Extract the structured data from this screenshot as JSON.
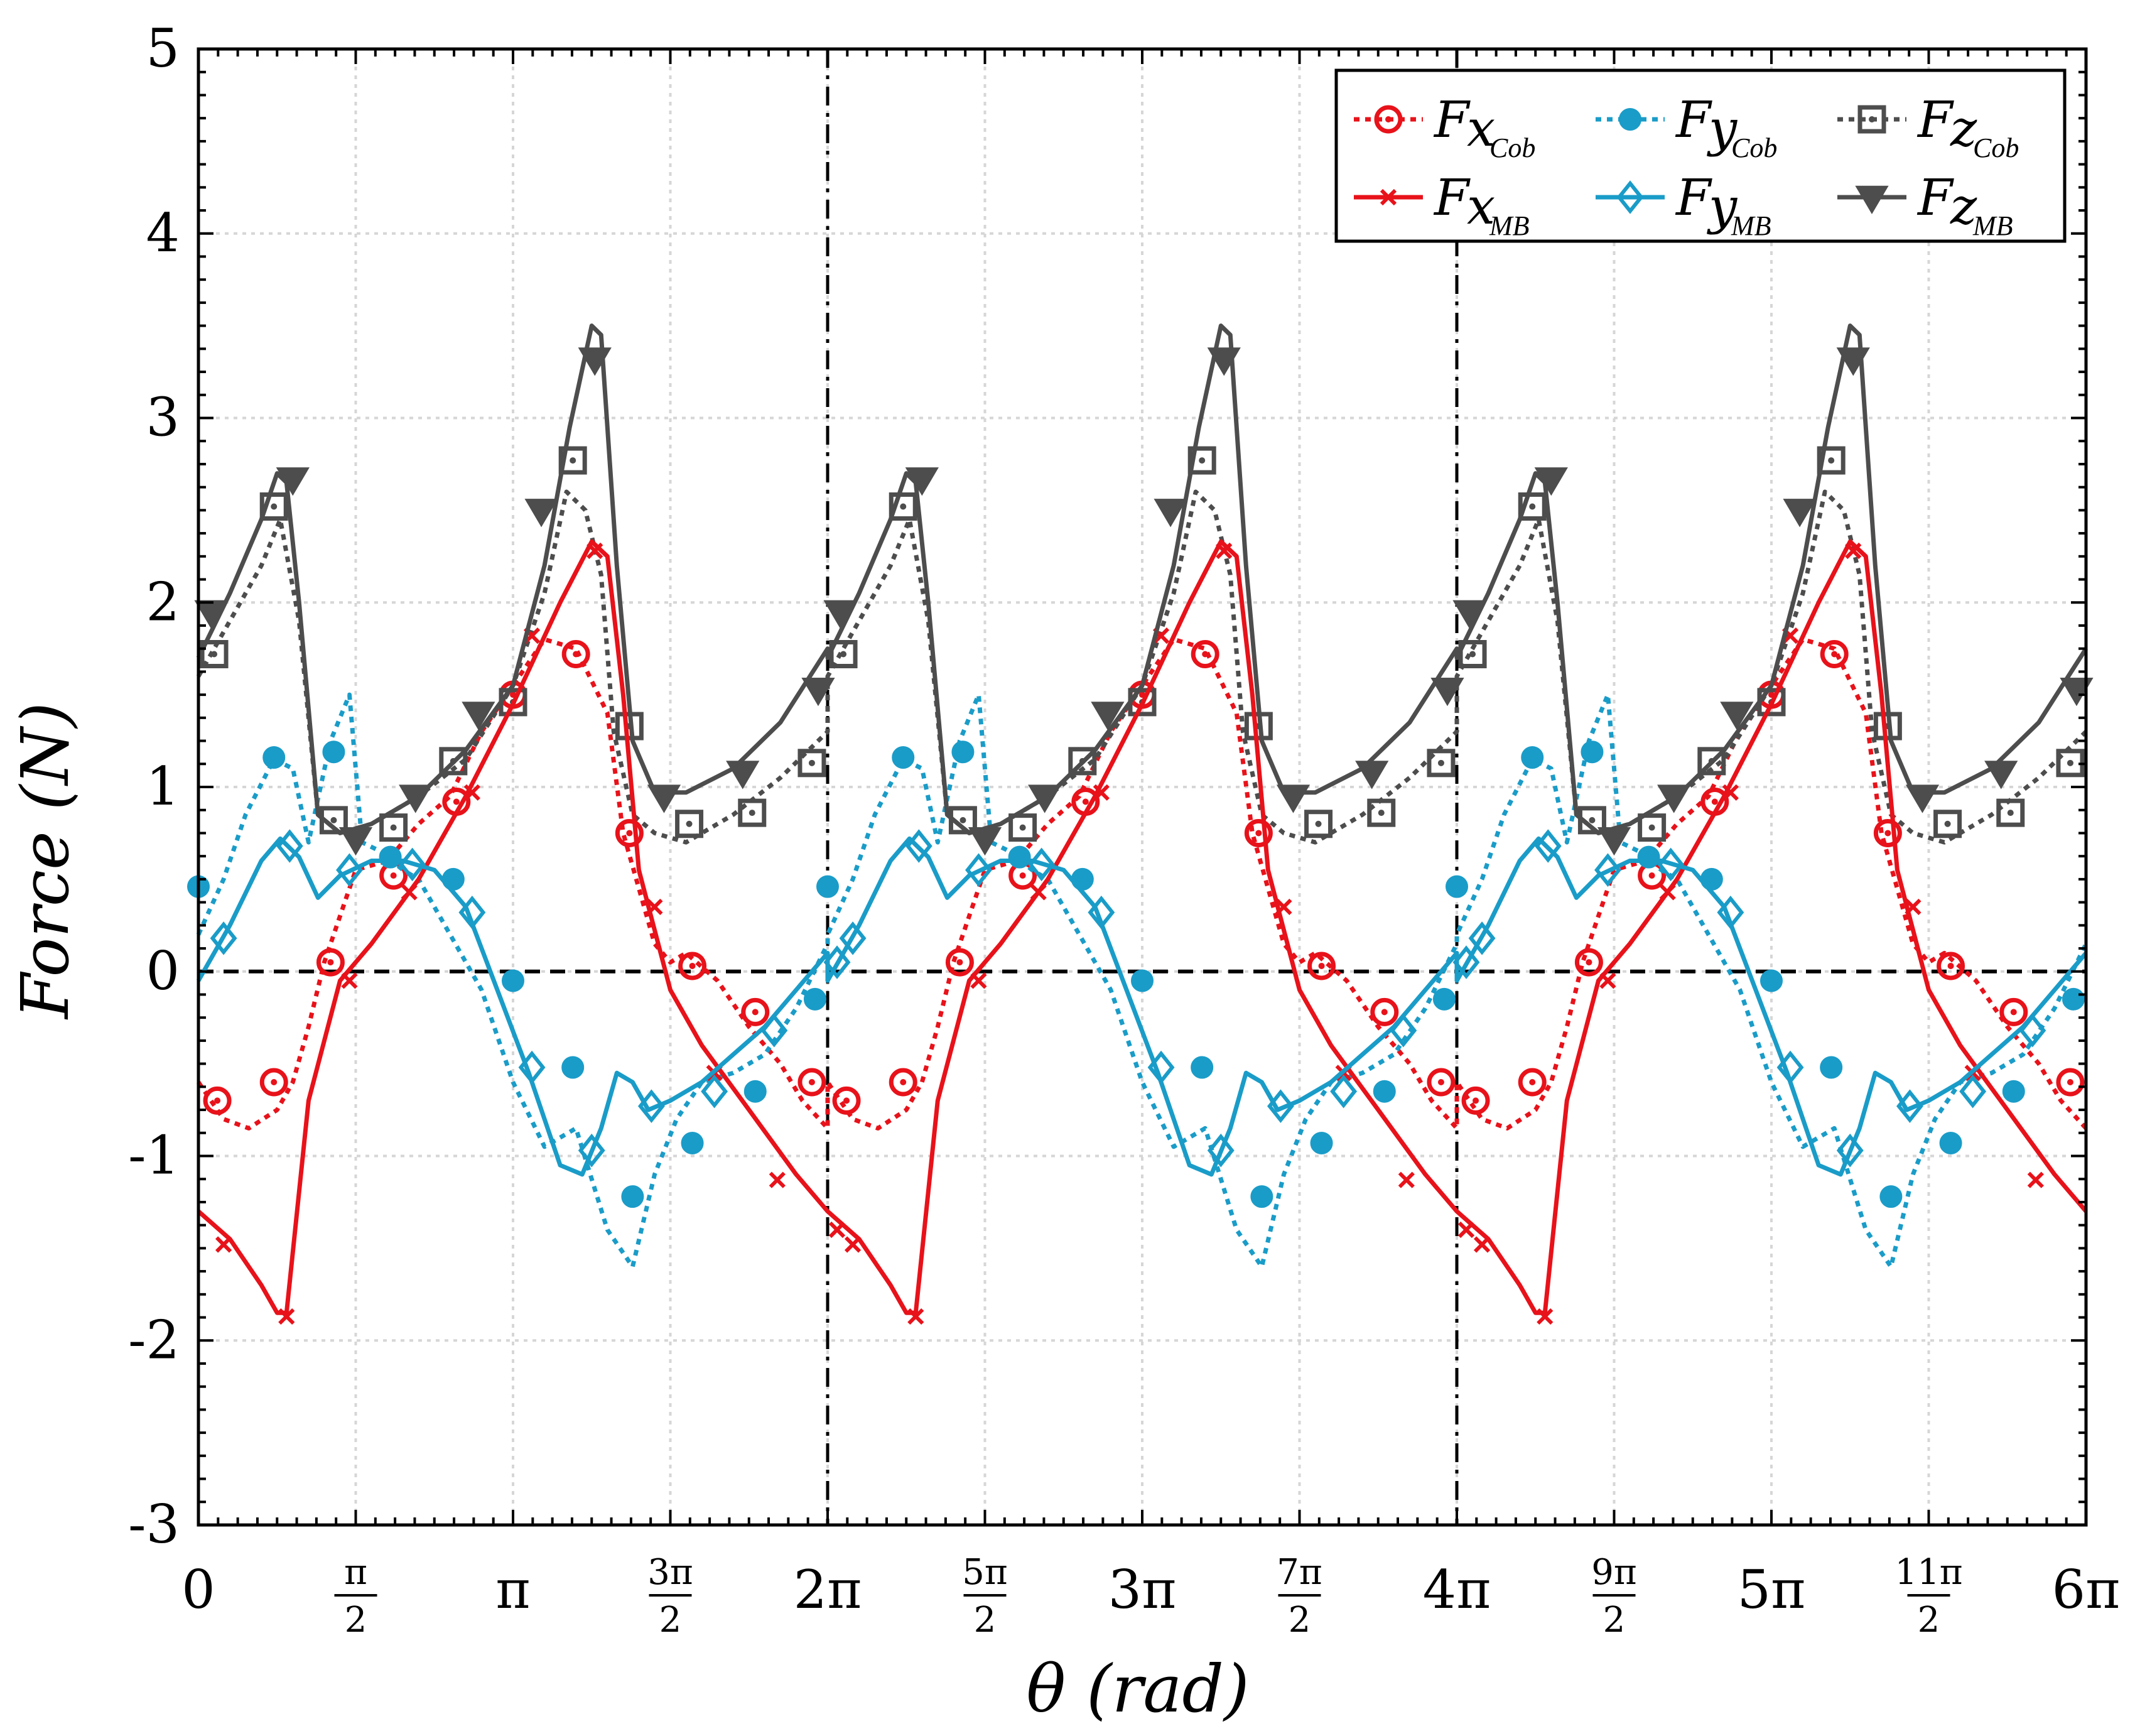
{
  "chart_data": {
    "type": "line",
    "xlabel": "θ (rad)",
    "ylabel": "Force (N)",
    "xlim_pi": [
      0,
      6
    ],
    "ylim": [
      -3,
      5
    ],
    "y_ticks": [
      -3,
      -2,
      -1,
      0,
      1,
      2,
      3,
      4,
      5
    ],
    "y_tick_labels": [
      "-3",
      "-2",
      "-1",
      "0",
      "1",
      "2",
      "3",
      "4",
      "5"
    ],
    "x_ticks": [
      {
        "value_pi": 0,
        "label": "0"
      },
      {
        "value_pi": 0.5,
        "num": "π",
        "den": "2"
      },
      {
        "value_pi": 1,
        "label": "π"
      },
      {
        "value_pi": 1.5,
        "num": "3π",
        "den": "2"
      },
      {
        "value_pi": 2,
        "label": "2π"
      },
      {
        "value_pi": 2.5,
        "num": "5π",
        "den": "2"
      },
      {
        "value_pi": 3,
        "label": "3π"
      },
      {
        "value_pi": 3.5,
        "num": "7π",
        "den": "2"
      },
      {
        "value_pi": 4,
        "label": "4π"
      },
      {
        "value_pi": 4.5,
        "num": "9π",
        "den": "2"
      },
      {
        "value_pi": 5,
        "label": "5π"
      },
      {
        "value_pi": 5.5,
        "num": "11π",
        "den": "2"
      },
      {
        "value_pi": 6,
        "label": "6π"
      }
    ],
    "grid": true,
    "reference_lines": {
      "horizontal_y": 0,
      "vertical_x_pi": [
        2,
        4
      ]
    },
    "legend_position": "top-right",
    "series": [
      {
        "id": "fx-cob",
        "name": "F",
        "sub_var": "x",
        "sub_sub": "Cob",
        "color": "#e8121a",
        "dash": "dotted",
        "marker": "circle-dot",
        "x_pi": [
          0,
          0.08,
          0.16,
          0.25,
          0.3,
          0.35,
          0.4,
          0.5,
          0.6,
          0.7,
          0.8,
          0.9,
          1.0,
          1.1,
          1.2,
          1.3,
          1.35,
          1.45,
          1.5,
          1.55,
          1.65,
          1.75,
          1.85,
          1.92,
          2.0
        ],
        "y": [
          -0.6,
          -0.8,
          -0.85,
          -0.75,
          -0.6,
          -0.3,
          0.05,
          0.55,
          0.6,
          0.8,
          0.95,
          1.3,
          1.55,
          1.8,
          1.75,
          1.4,
          0.75,
          0.15,
          0.05,
          0.1,
          -0.05,
          -0.3,
          -0.5,
          -0.7,
          -0.85
        ],
        "markers_x_pi": [
          0.06,
          0.24,
          0.42,
          0.62,
          0.82,
          1.0,
          1.2,
          1.37,
          1.57,
          1.77,
          1.95
        ],
        "markers_y": [
          -0.7,
          -0.6,
          0.05,
          0.52,
          0.92,
          1.5,
          1.72,
          0.75,
          0.03,
          -0.22,
          -0.6
        ]
      },
      {
        "id": "fy-cob",
        "name": "F",
        "sub_var": "y",
        "sub_sub": "Cob",
        "color": "#1a9cc8",
        "dash": "dotted",
        "marker": "filled-circle",
        "x_pi": [
          0,
          0.08,
          0.15,
          0.24,
          0.3,
          0.35,
          0.42,
          0.48,
          0.52,
          0.58,
          0.65,
          0.7,
          0.8,
          0.9,
          1.0,
          1.1,
          1.2,
          1.3,
          1.38,
          1.45,
          1.52,
          1.6,
          1.7,
          1.8,
          1.9,
          2.0
        ],
        "y": [
          0.2,
          0.5,
          0.85,
          1.15,
          1.1,
          0.7,
          1.25,
          1.5,
          0.7,
          0.65,
          0.55,
          0.5,
          0.2,
          -0.1,
          -0.6,
          -0.95,
          -0.85,
          -1.4,
          -1.6,
          -1.1,
          -0.8,
          -0.6,
          -0.55,
          -0.45,
          -0.2,
          0.15
        ],
        "markers_x_pi": [
          0.0,
          0.24,
          0.43,
          0.61,
          0.81,
          1.0,
          1.19,
          1.38,
          1.57,
          1.77,
          1.96
        ],
        "markers_y": [
          0.46,
          1.16,
          1.19,
          0.62,
          0.5,
          -0.05,
          -0.52,
          -1.22,
          -0.93,
          -0.65,
          -0.15
        ]
      },
      {
        "id": "fz-cob",
        "name": "F",
        "sub_var": "z",
        "sub_sub": "Cob",
        "color": "#4d4d4d",
        "dash": "dotted",
        "marker": "square-dot",
        "x_pi": [
          0,
          0.1,
          0.2,
          0.26,
          0.32,
          0.38,
          0.45,
          0.55,
          0.7,
          0.85,
          1.0,
          1.1,
          1.17,
          1.23,
          1.28,
          1.32,
          1.38,
          1.45,
          1.55,
          1.7,
          1.85,
          2.0
        ],
        "y": [
          1.6,
          1.9,
          2.2,
          2.45,
          1.9,
          0.85,
          0.75,
          0.8,
          0.95,
          1.15,
          1.55,
          2.05,
          2.6,
          2.5,
          2.15,
          1.3,
          0.85,
          0.75,
          0.7,
          0.85,
          1.05,
          1.3
        ],
        "markers_x_pi": [
          0.05,
          0.24,
          0.43,
          0.62,
          0.81,
          1.0,
          1.19,
          1.37,
          1.56,
          1.76,
          1.95
        ],
        "markers_y": [
          1.72,
          2.52,
          0.82,
          0.78,
          1.14,
          1.46,
          2.77,
          1.33,
          0.8,
          0.86,
          1.13
        ]
      },
      {
        "id": "fx-mb",
        "name": "F",
        "sub_var": "x",
        "sub_sub": "MB",
        "color": "#e8121a",
        "dash": "solid",
        "marker": "x",
        "x_pi": [
          0,
          0.1,
          0.2,
          0.25,
          0.28,
          0.35,
          0.45,
          0.55,
          0.7,
          0.85,
          1.0,
          1.15,
          1.25,
          1.3,
          1.35,
          1.4,
          1.5,
          1.6,
          1.75,
          1.9,
          2.0
        ],
        "y": [
          -1.3,
          -1.45,
          -1.7,
          -1.85,
          -1.85,
          -0.7,
          -0.05,
          0.15,
          0.5,
          0.95,
          1.45,
          2.0,
          2.33,
          2.25,
          1.5,
          0.55,
          -0.1,
          -0.4,
          -0.75,
          -1.1,
          -1.3
        ],
        "markers_x_pi": [
          0.08,
          0.28,
          0.48,
          0.67,
          0.87,
          1.06,
          1.26,
          1.45,
          1.64,
          1.84,
          2.03
        ],
        "markers_y": [
          -1.48,
          -1.87,
          -0.05,
          0.43,
          0.97,
          1.82,
          2.28,
          0.35,
          -0.55,
          -1.13,
          -1.4
        ]
      },
      {
        "id": "fy-mb",
        "name": "F",
        "sub_var": "y",
        "sub_sub": "MB",
        "color": "#1a9cc8",
        "dash": "solid",
        "marker": "diamond",
        "x_pi": [
          0,
          0.1,
          0.2,
          0.26,
          0.32,
          0.38,
          0.45,
          0.55,
          0.65,
          0.75,
          0.85,
          0.95,
          1.05,
          1.15,
          1.22,
          1.28,
          1.33,
          1.38,
          1.43,
          1.5,
          1.6,
          1.7,
          1.8,
          1.9,
          2.0
        ],
        "y": [
          -0.05,
          0.25,
          0.6,
          0.72,
          0.62,
          0.4,
          0.52,
          0.6,
          0.6,
          0.55,
          0.35,
          -0.1,
          -0.55,
          -1.05,
          -1.1,
          -0.85,
          -0.55,
          -0.6,
          -0.75,
          -0.7,
          -0.6,
          -0.45,
          -0.3,
          -0.1,
          0.1
        ],
        "markers_x_pi": [
          0.08,
          0.29,
          0.48,
          0.68,
          0.87,
          1.06,
          1.25,
          1.44,
          1.64,
          1.83,
          2.03
        ],
        "markers_y": [
          0.18,
          0.68,
          0.55,
          0.58,
          0.32,
          -0.52,
          -0.97,
          -0.73,
          -0.65,
          -0.32,
          0.05
        ]
      },
      {
        "id": "fz-mb",
        "name": "F",
        "sub_var": "z",
        "sub_sub": "MB",
        "color": "#4d4d4d",
        "dash": "solid",
        "marker": "triangle-down",
        "x_pi": [
          0,
          0.1,
          0.2,
          0.25,
          0.28,
          0.32,
          0.38,
          0.45,
          0.55,
          0.7,
          0.85,
          1.0,
          1.1,
          1.18,
          1.25,
          1.28,
          1.33,
          1.38,
          1.45,
          1.55,
          1.7,
          1.85,
          2.0
        ],
        "y": [
          1.7,
          2.05,
          2.45,
          2.7,
          2.65,
          2.0,
          0.85,
          0.75,
          0.8,
          0.95,
          1.2,
          1.55,
          2.2,
          2.95,
          3.5,
          3.45,
          2.2,
          1.25,
          0.97,
          0.97,
          1.1,
          1.35,
          1.75
        ],
        "markers_x_pi": [
          0.04,
          0.3,
          0.5,
          0.69,
          0.89,
          1.09,
          1.26,
          1.48,
          1.73,
          1.97
        ],
        "markers_y": [
          1.95,
          2.67,
          0.72,
          0.95,
          1.4,
          2.5,
          3.32,
          0.95,
          1.08,
          1.53
        ]
      }
    ]
  }
}
